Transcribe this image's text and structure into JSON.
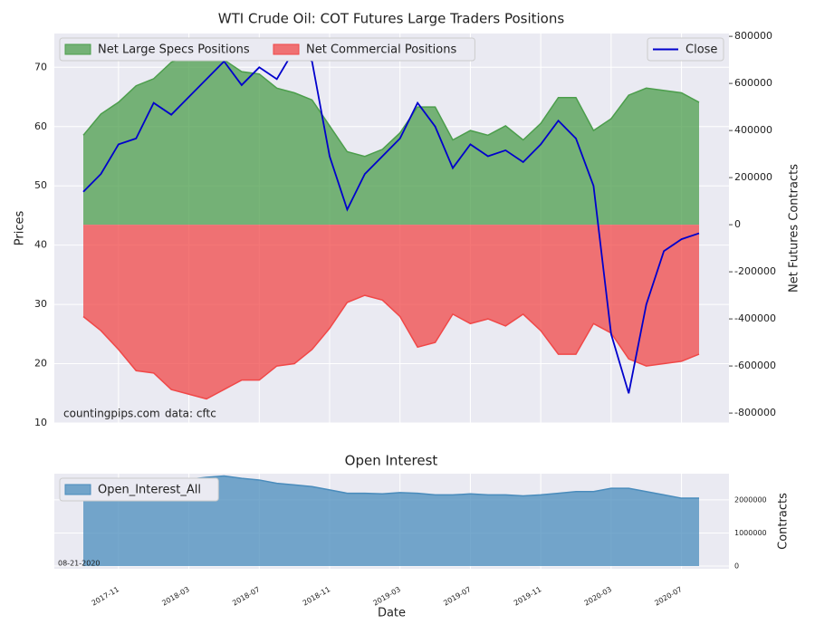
{
  "chart_data": [
    {
      "type": "area",
      "title": "WTI Crude Oil: COT Futures Large Traders Positions",
      "ylabel": "Prices",
      "y2label": "Net Futures Contracts",
      "annotations": [
        "countingpips.com",
        "data: cftc"
      ],
      "categories": [
        "2017-09",
        "2017-10",
        "2017-11",
        "2017-12",
        "2018-01",
        "2018-02",
        "2018-03",
        "2018-04",
        "2018-05",
        "2018-06",
        "2018-07",
        "2018-08",
        "2018-09",
        "2018-10",
        "2018-11",
        "2018-12",
        "2019-01",
        "2019-02",
        "2019-03",
        "2019-04",
        "2019-05",
        "2019-06",
        "2019-07",
        "2019-08",
        "2019-09",
        "2019-10",
        "2019-11",
        "2019-12",
        "2020-01",
        "2020-02",
        "2020-03",
        "2020-04",
        "2020-05",
        "2020-06",
        "2020-07",
        "2020-08"
      ],
      "ylim": [
        10,
        75.7
      ],
      "yticks": [
        10,
        20,
        30,
        40,
        50,
        60,
        70
      ],
      "y2lim": [
        -842000,
        812000
      ],
      "y2ticks": [
        -800000,
        -600000,
        -400000,
        -200000,
        0,
        200000,
        400000,
        600000,
        800000
      ],
      "grid": true,
      "series": [
        {
          "name": "Net Large Specs Positions",
          "type": "area",
          "axis": "y2",
          "color": "#4c9e4c",
          "legend": "upper left",
          "values": [
            380000,
            470000,
            520000,
            590000,
            620000,
            690000,
            720000,
            730000,
            700000,
            650000,
            640000,
            580000,
            560000,
            530000,
            420000,
            310000,
            290000,
            320000,
            390000,
            500000,
            500000,
            360000,
            400000,
            380000,
            420000,
            360000,
            430000,
            540000,
            540000,
            400000,
            450000,
            550000,
            580000,
            570000,
            560000,
            520000
          ]
        },
        {
          "name": "Net Commercial Positions",
          "type": "area",
          "axis": "y2",
          "color": "#f04848",
          "legend": "upper left",
          "values": [
            -390000,
            -450000,
            -530000,
            -620000,
            -630000,
            -700000,
            -720000,
            -740000,
            -700000,
            -660000,
            -660000,
            -600000,
            -590000,
            -530000,
            -440000,
            -330000,
            -300000,
            -320000,
            -390000,
            -520000,
            -500000,
            -380000,
            -420000,
            -400000,
            -430000,
            -380000,
            -450000,
            -550000,
            -550000,
            -420000,
            -460000,
            -570000,
            -600000,
            -590000,
            -580000,
            -550000
          ]
        },
        {
          "name": "Close",
          "type": "line",
          "color": "#0000cc",
          "legend": "upper right",
          "values": [
            49,
            52,
            57,
            58,
            64,
            62,
            65,
            68,
            71,
            67,
            70,
            68,
            73,
            71,
            55,
            46,
            52,
            55,
            58,
            64,
            60,
            53,
            57,
            55,
            56,
            54,
            57,
            61,
            58,
            50,
            25,
            15,
            30,
            39,
            41,
            42
          ]
        }
      ]
    },
    {
      "type": "area",
      "title": "Open Interest",
      "ylabel": "Contracts",
      "xlabel": "Date",
      "annotations": [
        "08-21-2020"
      ],
      "yaxis_side": "right",
      "categories": [
        "2017-09",
        "2017-10",
        "2017-11",
        "2017-12",
        "2018-01",
        "2018-02",
        "2018-03",
        "2018-04",
        "2018-05",
        "2018-06",
        "2018-07",
        "2018-08",
        "2018-09",
        "2018-10",
        "2018-11",
        "2018-12",
        "2019-01",
        "2019-02",
        "2019-03",
        "2019-04",
        "2019-05",
        "2019-06",
        "2019-07",
        "2019-08",
        "2019-09",
        "2019-10",
        "2019-11",
        "2019-12",
        "2020-01",
        "2020-02",
        "2020-03",
        "2020-04",
        "2020-05",
        "2020-06",
        "2020-07",
        "2020-08"
      ],
      "xticks": [
        "2017-11",
        "2018-03",
        "2018-07",
        "2018-11",
        "2019-03",
        "2019-07",
        "2019-11",
        "2020-03",
        "2020-07"
      ],
      "ylim": [
        -82000,
        2790000
      ],
      "yticks": [
        0,
        1000000,
        2000000
      ],
      "grid": true,
      "series": [
        {
          "name": "Open_Interest_All",
          "type": "area",
          "color": "#4a8cbc",
          "legend": "upper left",
          "values": [
            2430000,
            2450000,
            2500000,
            2550000,
            2600000,
            2600000,
            2620000,
            2680000,
            2720000,
            2650000,
            2600000,
            2500000,
            2450000,
            2400000,
            2300000,
            2200000,
            2200000,
            2180000,
            2220000,
            2200000,
            2150000,
            2150000,
            2180000,
            2150000,
            2150000,
            2120000,
            2150000,
            2200000,
            2250000,
            2250000,
            2350000,
            2350000,
            2250000,
            2150000,
            2050000,
            2050000
          ]
        }
      ]
    }
  ]
}
